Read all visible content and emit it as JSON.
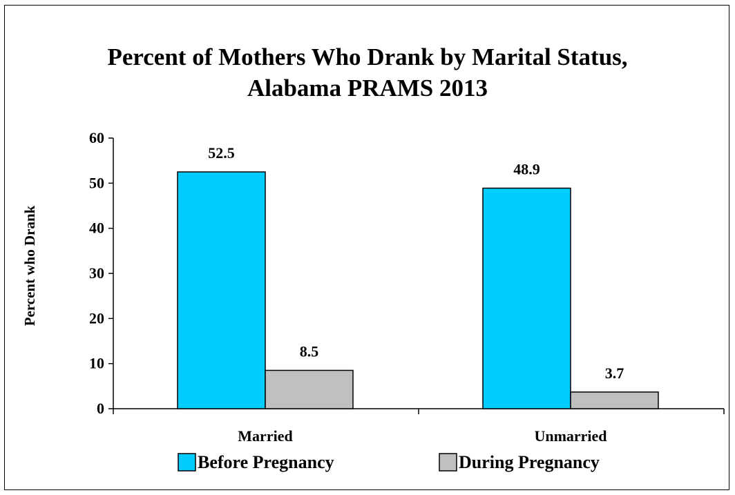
{
  "chart_data": {
    "type": "bar",
    "title_line1": "Percent of Mothers Who Drank by Marital Status,",
    "title_line2": "Alabama PRAMS 2013",
    "xlabel": "",
    "ylabel": "Percent who Drank",
    "ylim": [
      0,
      60
    ],
    "yticks": [
      0,
      10,
      20,
      30,
      40,
      50,
      60
    ],
    "categories": [
      "Married",
      "Unmarried"
    ],
    "series": [
      {
        "name": "Before Pregnancy",
        "values": [
          52.5,
          48.9
        ],
        "color": "#00CCFF"
      },
      {
        "name": "During Pregnancy",
        "values": [
          8.5,
          3.7
        ],
        "color": "#C0C0C0"
      }
    ],
    "data_labels": [
      [
        "52.5",
        "48.9"
      ],
      [
        "8.5",
        "3.7"
      ]
    ],
    "grid": false,
    "legend_position": "bottom"
  }
}
